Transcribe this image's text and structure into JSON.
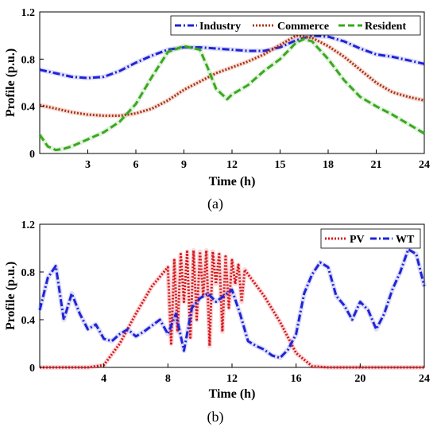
{
  "chart_data": [
    {
      "panel_label": "(a)",
      "type": "line",
      "xlabel": "Time  (h)",
      "ylabel": "Profile  (p.u.)",
      "xlim": [
        0,
        24
      ],
      "ylim": [
        0,
        1.2
      ],
      "xticks": [
        3,
        6,
        9,
        12,
        15,
        18,
        21,
        24
      ],
      "yticks": [
        0,
        0.4,
        0.8,
        1.2
      ],
      "ytick_labels": [
        "0",
        "0.4",
        "0.8",
        "1.2"
      ],
      "legend_position": "top-right",
      "series": [
        {
          "name": "Industry",
          "color": "#1f24d6",
          "style": "dash-dot",
          "x": [
            0,
            1,
            2,
            3,
            4,
            5,
            6,
            7,
            8,
            9,
            10,
            11,
            12,
            13,
            14,
            15,
            16,
            17,
            18,
            19,
            20,
            21,
            22,
            23,
            24
          ],
          "y": [
            0.71,
            0.68,
            0.65,
            0.64,
            0.65,
            0.7,
            0.77,
            0.83,
            0.88,
            0.9,
            0.9,
            0.89,
            0.88,
            0.87,
            0.87,
            0.9,
            0.96,
            1.0,
            0.99,
            0.95,
            0.89,
            0.84,
            0.82,
            0.79,
            0.76
          ]
        },
        {
          "name": "Commerce",
          "color": "#b03010",
          "style": "dotted",
          "x": [
            0,
            1,
            2,
            3,
            4,
            5,
            6,
            7,
            8,
            9,
            10,
            11,
            12,
            13,
            14,
            15,
            16,
            17,
            18,
            19,
            20,
            21,
            22,
            23,
            24
          ],
          "y": [
            0.41,
            0.38,
            0.35,
            0.33,
            0.32,
            0.32,
            0.34,
            0.38,
            0.45,
            0.54,
            0.61,
            0.68,
            0.73,
            0.78,
            0.84,
            0.92,
            1.0,
            0.98,
            0.91,
            0.82,
            0.71,
            0.6,
            0.52,
            0.48,
            0.45
          ]
        },
        {
          "name": "Resident",
          "color": "#3aa820",
          "style": "dashed",
          "x": [
            0,
            0.5,
            1,
            1.5,
            2,
            3,
            4,
            5,
            6,
            7,
            8,
            9,
            10,
            10.5,
            11,
            11.7,
            12,
            13,
            14,
            15,
            16,
            16.5,
            17,
            18,
            19,
            20,
            21,
            22,
            23,
            24
          ],
          "y": [
            0.16,
            0.06,
            0.03,
            0.04,
            0.06,
            0.12,
            0.18,
            0.27,
            0.42,
            0.65,
            0.86,
            0.91,
            0.88,
            0.72,
            0.55,
            0.46,
            0.5,
            0.58,
            0.7,
            0.8,
            0.94,
            0.97,
            0.95,
            0.8,
            0.62,
            0.48,
            0.4,
            0.33,
            0.25,
            0.17
          ]
        }
      ]
    },
    {
      "panel_label": "(b)",
      "type": "line",
      "xlabel": "Time (h)",
      "ylabel": "Profile (p.u.)",
      "xlim": [
        0,
        24
      ],
      "ylim": [
        0,
        1.2
      ],
      "xticks": [
        4,
        8,
        12,
        16,
        20,
        24
      ],
      "yticks": [
        0,
        0.4,
        0.8,
        1.2
      ],
      "ytick_labels": [
        "0",
        "0.4",
        "0.8",
        "1.2"
      ],
      "legend_position": "top-right",
      "series": [
        {
          "name": "PV",
          "color": "#d8151a",
          "style": "dotted",
          "x": [
            0,
            3,
            4,
            5,
            6,
            7,
            8,
            8.2,
            8.4,
            8.6,
            8.8,
            9,
            9.2,
            9.4,
            9.6,
            9.8,
            10,
            10.2,
            10.4,
            10.6,
            10.8,
            11,
            11.2,
            11.4,
            11.6,
            11.8,
            12,
            12.2,
            12.4,
            12.6,
            12.8,
            13,
            14,
            15,
            16,
            17,
            18,
            24
          ],
          "y": [
            0,
            0,
            0.02,
            0.2,
            0.45,
            0.68,
            0.84,
            0.2,
            0.9,
            0.3,
            0.95,
            0.55,
            0.97,
            0.25,
            0.98,
            0.4,
            0.97,
            0.6,
            0.98,
            0.18,
            0.97,
            0.7,
            0.95,
            0.3,
            0.93,
            0.5,
            0.9,
            0.7,
            0.86,
            0.55,
            0.82,
            0.78,
            0.6,
            0.38,
            0.12,
            0.01,
            0,
            0
          ]
        },
        {
          "name": "WT",
          "color": "#1f24d6",
          "style": "dash-dot",
          "x": [
            0,
            0.5,
            1,
            1.5,
            2,
            2.5,
            3,
            3.5,
            4,
            4.5,
            5,
            5.5,
            6,
            6.5,
            7,
            7.5,
            8,
            8.5,
            9,
            9.5,
            10,
            10.5,
            11,
            11.5,
            12,
            12.5,
            13,
            13.5,
            14,
            14.5,
            15,
            15.5,
            16,
            16.5,
            17,
            17.5,
            18,
            18.5,
            19,
            19.5,
            20,
            20.5,
            21,
            21.5,
            22,
            22.5,
            23,
            23.5,
            24
          ],
          "y": [
            0.48,
            0.75,
            0.85,
            0.4,
            0.62,
            0.45,
            0.32,
            0.36,
            0.24,
            0.22,
            0.28,
            0.32,
            0.26,
            0.3,
            0.35,
            0.4,
            0.28,
            0.45,
            0.14,
            0.5,
            0.58,
            0.62,
            0.55,
            0.6,
            0.65,
            0.45,
            0.22,
            0.18,
            0.15,
            0.1,
            0.08,
            0.15,
            0.28,
            0.62,
            0.78,
            0.88,
            0.84,
            0.6,
            0.52,
            0.4,
            0.55,
            0.48,
            0.32,
            0.45,
            0.65,
            0.8,
            0.99,
            0.95,
            0.68
          ]
        }
      ]
    }
  ]
}
